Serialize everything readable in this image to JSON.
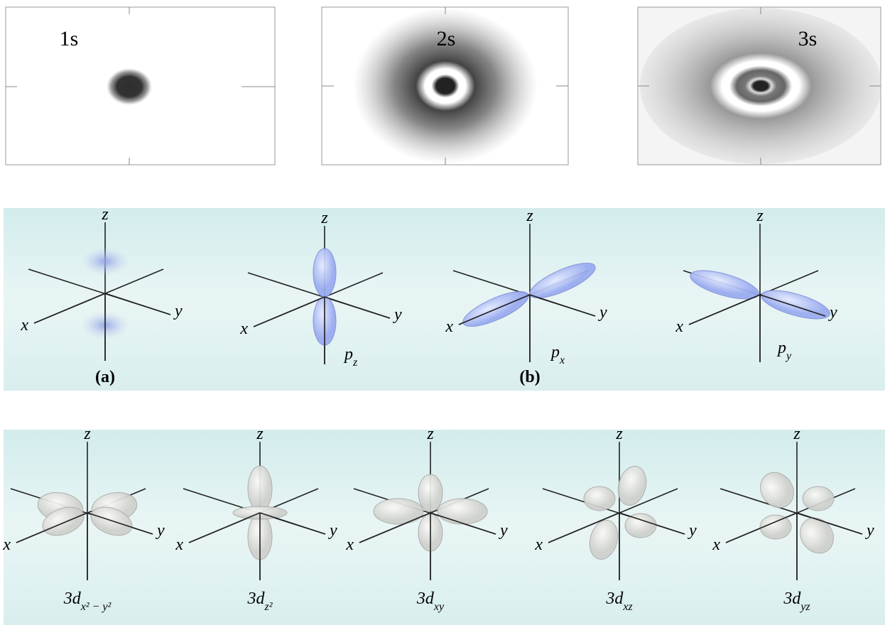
{
  "s_orbitals": [
    {
      "label": "1s"
    },
    {
      "label": "2s"
    },
    {
      "label": "3s"
    }
  ],
  "p_orbitals": {
    "diagrams": [
      {
        "axes": {
          "z": "z",
          "x": "x",
          "y": "y"
        }
      },
      {
        "axes": {
          "z": "z",
          "x": "x",
          "y": "y"
        },
        "label": {
          "main": "p",
          "sub": "z"
        }
      },
      {
        "axes": {
          "z": "z",
          "x": "x",
          "y": "y"
        },
        "label": {
          "main": "p",
          "sub": "x"
        }
      },
      {
        "axes": {
          "z": "z",
          "x": "x",
          "y": "y"
        },
        "label": {
          "main": "p",
          "sub": "y"
        }
      }
    ],
    "captions": [
      "(a)",
      "(b)"
    ]
  },
  "d_orbitals": {
    "diagrams": [
      {
        "axes": {
          "z": "z",
          "x": "x",
          "y": "y"
        },
        "label": {
          "main": "3d",
          "sub": "x² − y²"
        }
      },
      {
        "axes": {
          "z": "z",
          "x": "x",
          "y": "y"
        },
        "label": {
          "main": "3d",
          "sub": "z²"
        }
      },
      {
        "axes": {
          "z": "z",
          "x": "x",
          "y": "y"
        },
        "label": {
          "main": "3d",
          "sub": "xy"
        }
      },
      {
        "axes": {
          "z": "z",
          "x": "x",
          "y": "y"
        },
        "label": {
          "main": "3d",
          "sub": "xz"
        }
      },
      {
        "axes": {
          "z": "z",
          "x": "x",
          "y": "y"
        },
        "label": {
          "main": "3d",
          "sub": "yz"
        }
      }
    ]
  }
}
